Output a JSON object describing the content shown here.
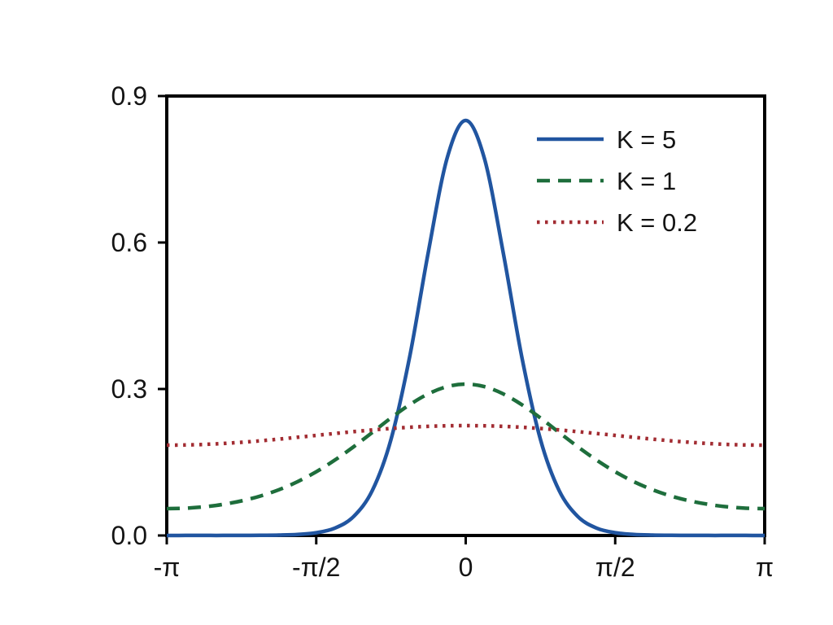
{
  "chart_data": {
    "type": "line",
    "title": "",
    "xlabel": "",
    "ylabel": "",
    "grid": false,
    "legend_position": "top-right",
    "background_color": "#ffffff",
    "axis_color": "#000000",
    "xlim": [
      -1,
      1
    ],
    "ylim": [
      0,
      0.9
    ],
    "x_unit": "radians (multiples of pi)",
    "x_ticks": [
      {
        "value": -1,
        "label": "-π"
      },
      {
        "value": -0.5,
        "label": "-π/2"
      },
      {
        "value": 0,
        "label": "0"
      },
      {
        "value": 0.5,
        "label": "π/2"
      },
      {
        "value": 1,
        "label": "π"
      }
    ],
    "y_ticks": [
      {
        "value": 0,
        "label": "0.0"
      },
      {
        "value": 0.3,
        "label": "0.3"
      },
      {
        "value": 0.6,
        "label": "0.6"
      },
      {
        "value": 0.9,
        "label": "0.9"
      }
    ],
    "x": [
      -1,
      -0.9375,
      -0.875,
      -0.8125,
      -0.75,
      -0.6875,
      -0.625,
      -0.5625,
      -0.5,
      -0.4375,
      -0.375,
      -0.3125,
      -0.25,
      -0.1875,
      -0.125,
      -0.0625,
      0,
      0.0625,
      0.125,
      0.1875,
      0.25,
      0.3125,
      0.375,
      0.4375,
      0.5,
      0.5625,
      0.625,
      0.6875,
      0.75,
      0.8125,
      0.875,
      0.9375,
      1
    ],
    "series": [
      {
        "name": "K = 5",
        "color": "#2155a0",
        "style": "solid",
        "values": [
          0.0,
          0.0001,
          0.0001,
          0.0001,
          0.0002,
          0.0004,
          0.0008,
          0.0022,
          0.0057,
          0.0152,
          0.0388,
          0.0921,
          0.1965,
          0.366,
          0.581,
          0.772,
          0.85,
          0.772,
          0.581,
          0.366,
          0.1965,
          0.0921,
          0.0388,
          0.0152,
          0.0057,
          0.0022,
          0.0008,
          0.0004,
          0.0002,
          0.0001,
          0.0001,
          0.0001,
          0.0
        ]
      },
      {
        "name": "K = 1",
        "color": "#1e6e3c",
        "style": "dashed",
        "values": [
          0.055,
          0.0559,
          0.0587,
          0.0636,
          0.0708,
          0.0807,
          0.0937,
          0.1102,
          0.1305,
          0.1545,
          0.1817,
          0.211,
          0.2406,
          0.2679,
          0.2902,
          0.3048,
          0.31,
          0.3048,
          0.2902,
          0.2679,
          0.2406,
          0.211,
          0.1817,
          0.1545,
          0.1305,
          0.1102,
          0.0937,
          0.0807,
          0.0708,
          0.0636,
          0.0587,
          0.0559,
          0.055
        ]
      },
      {
        "name": "K = 0.2",
        "color": "#a22c32",
        "style": "dotted",
        "values": [
          0.185,
          0.1854,
          0.1865,
          0.1884,
          0.1909,
          0.1939,
          0.1973,
          0.2011,
          0.205,
          0.2089,
          0.2127,
          0.2161,
          0.2191,
          0.2216,
          0.2235,
          0.2246,
          0.225,
          0.2246,
          0.2235,
          0.2216,
          0.2191,
          0.2161,
          0.2127,
          0.2089,
          0.205,
          0.2011,
          0.1973,
          0.1939,
          0.1909,
          0.1884,
          0.1865,
          0.1854,
          0.185
        ]
      }
    ]
  }
}
